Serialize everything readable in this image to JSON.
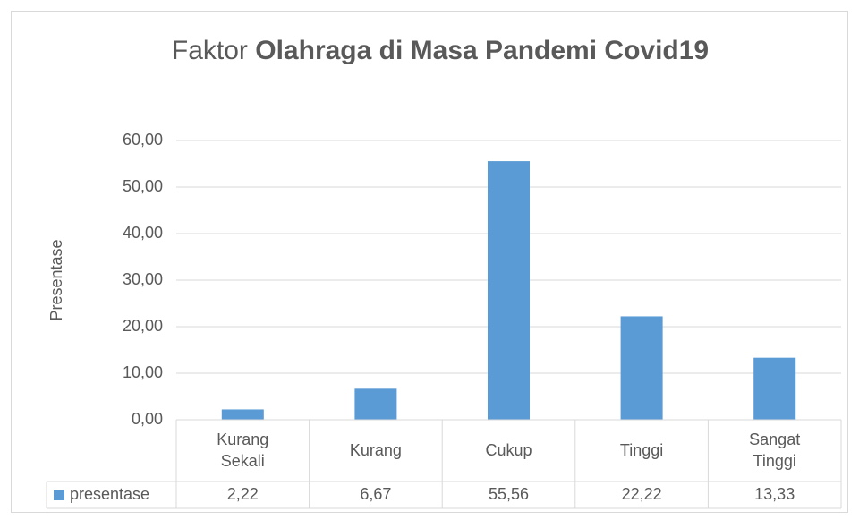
{
  "chart_data": {
    "type": "bar",
    "title": [
      "Faktor",
      "Olahraga di Masa Pandemi Covid19"
    ],
    "y_label": "Presentase",
    "categories": [
      "Kurang Sekali",
      "Kurang",
      "Cukup",
      "Tinggi",
      "Sangat Tinggi"
    ],
    "series": [
      {
        "name": "presentase",
        "color": "#5b9bd5",
        "values": [
          2.22,
          6.67,
          55.56,
          22.22,
          13.33
        ],
        "value_labels": [
          "2,22",
          "6,67",
          "55,56",
          "22,22",
          "13,33"
        ]
      }
    ],
    "ylim": [
      0,
      60
    ],
    "yticks": [
      {
        "value": 0,
        "label": "0,00"
      },
      {
        "value": 10,
        "label": "10,00"
      },
      {
        "value": 20,
        "label": "20,00"
      },
      {
        "value": 30,
        "label": "30,00"
      },
      {
        "value": 40,
        "label": "40,00"
      },
      {
        "value": 50,
        "label": "50,00"
      },
      {
        "value": 60,
        "label": "60,00"
      }
    ],
    "grid": true,
    "data_table": true
  }
}
